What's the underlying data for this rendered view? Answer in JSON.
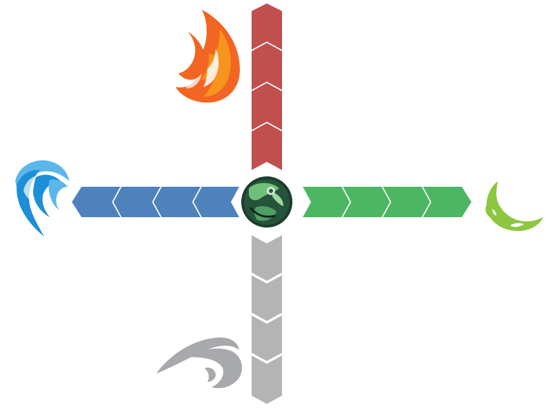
{
  "diagram": {
    "center": {
      "icon": "earth-orb-icon"
    },
    "arms": [
      {
        "direction": "up",
        "element_icon": "fire-icon",
        "color": "#c0504d",
        "segments": 4
      },
      {
        "direction": "left",
        "element_icon": "water-icon",
        "color": "#4f81bd",
        "segments": 4
      },
      {
        "direction": "right",
        "element_icon": "earth-icon",
        "color": "#4cb663",
        "segments": 4
      },
      {
        "direction": "down",
        "element_icon": "air-icon",
        "color": "#b4b4b4",
        "segments": 4
      }
    ],
    "colors": {
      "fire_primary": "#f26522",
      "fire_secondary": "#f7941d",
      "water_primary": "#1c8fd8",
      "water_secondary": "#5bb7ea",
      "earth_primary": "#8dc63f",
      "air_primary": "#a7a9ac",
      "orb_dark": "#1e3b2c",
      "orb_light": "#6fbf7a"
    }
  }
}
